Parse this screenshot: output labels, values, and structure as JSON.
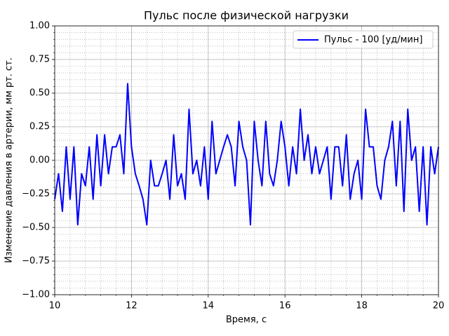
{
  "chart_data": {
    "type": "line",
    "title": "Пульс после физической нагрузки",
    "x_label": "Время, с",
    "y_label": "Изменение давления в артерии, мм рт. ст.",
    "x": [
      10.0,
      10.1,
      10.2,
      10.3,
      10.4,
      10.5,
      10.6,
      10.7,
      10.8,
      10.9,
      11.0,
      11.1,
      11.2,
      11.3,
      11.4,
      11.5,
      11.6,
      11.7,
      11.8,
      11.9,
      12.0,
      12.1,
      12.2,
      12.3,
      12.4,
      12.5,
      12.6,
      12.7,
      12.8,
      12.9,
      13.0,
      13.1,
      13.2,
      13.3,
      13.4,
      13.5,
      13.6,
      13.7,
      13.8,
      13.9,
      14.0,
      14.1,
      14.2,
      14.3,
      14.4,
      14.5,
      14.6,
      14.7,
      14.8,
      14.9,
      15.0,
      15.1,
      15.2,
      15.3,
      15.4,
      15.5,
      15.6,
      15.7,
      15.8,
      15.9,
      16.0,
      16.1,
      16.2,
      16.3,
      16.4,
      16.5,
      16.6,
      16.7,
      16.8,
      16.9,
      17.0,
      17.1,
      17.2,
      17.3,
      17.4,
      17.5,
      17.6,
      17.7,
      17.8,
      17.9,
      18.0,
      18.1,
      18.2,
      18.3,
      18.4,
      18.5,
      18.6,
      18.7,
      18.8,
      18.9,
      19.0,
      19.1,
      19.2,
      19.3,
      19.4,
      19.5,
      19.6,
      19.7,
      19.8,
      19.9,
      20.0
    ],
    "series": [
      {
        "name": "Пульс - 100 [уд/мин]",
        "color": "#0000ff",
        "values": [
          -0.29,
          -0.1,
          -0.38,
          0.1,
          -0.29,
          0.1,
          -0.48,
          -0.1,
          -0.19,
          0.1,
          -0.29,
          0.19,
          -0.19,
          0.19,
          -0.1,
          0.1,
          0.1,
          0.19,
          -0.1,
          0.57,
          0.1,
          -0.1,
          -0.19,
          -0.29,
          -0.48,
          0.0,
          -0.19,
          -0.19,
          -0.1,
          0.0,
          -0.29,
          0.19,
          -0.19,
          -0.1,
          -0.29,
          0.38,
          -0.1,
          0.0,
          -0.19,
          0.1,
          -0.29,
          0.29,
          -0.1,
          0.0,
          0.1,
          0.19,
          0.1,
          -0.19,
          0.29,
          0.1,
          0.0,
          -0.48,
          0.29,
          0.0,
          -0.19,
          0.29,
          -0.1,
          -0.19,
          0.0,
          0.29,
          0.1,
          -0.19,
          0.1,
          -0.1,
          0.38,
          0.0,
          0.19,
          -0.1,
          0.1,
          -0.1,
          0.0,
          0.1,
          -0.29,
          0.1,
          0.1,
          -0.19,
          0.19,
          -0.29,
          -0.1,
          0.0,
          -0.29,
          0.38,
          0.1,
          0.1,
          -0.19,
          -0.29,
          0.0,
          0.1,
          0.29,
          -0.19,
          0.29,
          -0.38,
          0.38,
          0.0,
          0.1,
          -0.38,
          0.1,
          -0.48,
          0.1,
          -0.1,
          0.1
        ]
      }
    ],
    "xlim": [
      10,
      20
    ],
    "ylim": [
      -1,
      1
    ],
    "xticks": [
      10,
      12,
      14,
      16,
      18,
      20
    ],
    "yticks": [
      {
        "value": -1,
        "label": "−1.00"
      },
      {
        "value": -0.75,
        "label": "−0.75"
      },
      {
        "value": -0.5,
        "label": "−0.50"
      },
      {
        "value": -0.25,
        "label": "−0.25"
      },
      {
        "value": 0,
        "label": "0.00"
      },
      {
        "value": 0.25,
        "label": "0.25"
      },
      {
        "value": 0.5,
        "label": "0.50"
      },
      {
        "value": 0.75,
        "label": "0.75"
      },
      {
        "value": 1,
        "label": "1.00"
      }
    ],
    "grid": true,
    "minor_grid": true,
    "legend": "upper right"
  }
}
